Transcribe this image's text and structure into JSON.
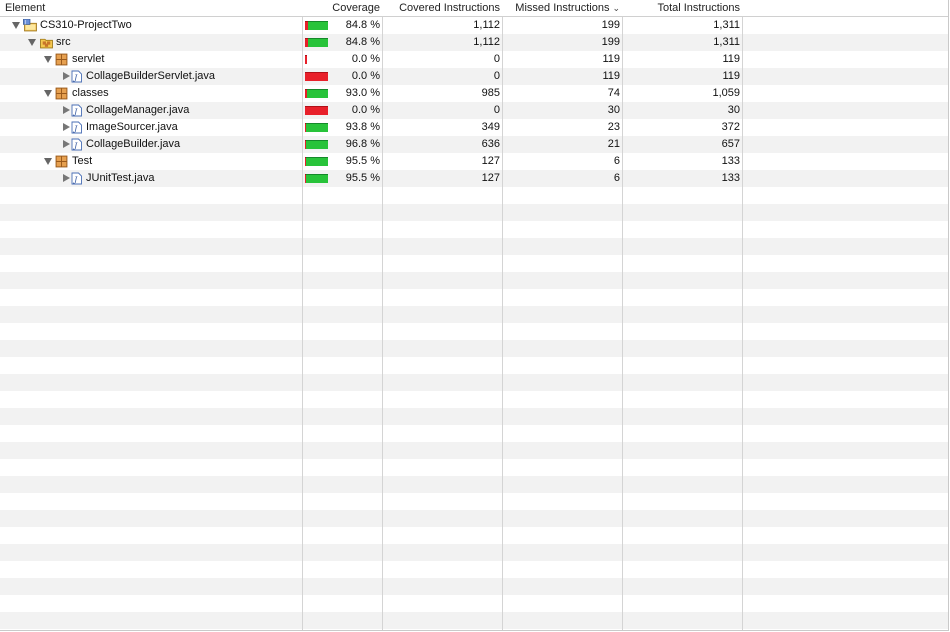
{
  "columns": {
    "element": "Element",
    "coverage": "Coverage",
    "covered": "Covered Instructions",
    "missed": "Missed Instructions",
    "total": "Total Instructions"
  },
  "sort": {
    "column": "missed",
    "direction": "descending",
    "icon": "chevron-down-icon"
  },
  "colors": {
    "covered": "#28c33a",
    "missed": "#e8202a",
    "stripe": "#f2f2f2"
  },
  "rows": [
    {
      "name": "CS310-ProjectTwo",
      "type": "project",
      "level": 0,
      "expanded": true,
      "coverage": "84.8 %",
      "ratio": 0.848,
      "covered": "1,112",
      "missed": "199",
      "total": "1,311"
    },
    {
      "name": "src",
      "type": "source-folder",
      "level": 1,
      "expanded": true,
      "coverage": "84.8 %",
      "ratio": 0.848,
      "covered": "1,112",
      "missed": "199",
      "total": "1,311"
    },
    {
      "name": "servlet",
      "type": "package",
      "level": 2,
      "expanded": true,
      "coverage": "0.0 %",
      "ratio": 0.0,
      "covered": "0",
      "missed": "119",
      "total": "119"
    },
    {
      "name": "CollageBuilderServlet.java",
      "type": "java-file",
      "level": 3,
      "expanded": false,
      "coverage": "0.0 %",
      "ratio": 0.0,
      "covered": "0",
      "missed": "119",
      "total": "119"
    },
    {
      "name": "classes",
      "type": "package",
      "level": 2,
      "expanded": true,
      "coverage": "93.0 %",
      "ratio": 0.93,
      "covered": "985",
      "missed": "74",
      "total": "1,059"
    },
    {
      "name": "CollageManager.java",
      "type": "java-file",
      "level": 3,
      "expanded": false,
      "coverage": "0.0 %",
      "ratio": 0.0,
      "covered": "0",
      "missed": "30",
      "total": "30"
    },
    {
      "name": "ImageSourcer.java",
      "type": "java-file",
      "level": 3,
      "expanded": false,
      "coverage": "93.8 %",
      "ratio": 0.938,
      "covered": "349",
      "missed": "23",
      "total": "372"
    },
    {
      "name": "CollageBuilder.java",
      "type": "java-file",
      "level": 3,
      "expanded": false,
      "coverage": "96.8 %",
      "ratio": 0.968,
      "covered": "636",
      "missed": "21",
      "total": "657"
    },
    {
      "name": "Test",
      "type": "package",
      "level": 2,
      "expanded": true,
      "coverage": "95.5 %",
      "ratio": 0.955,
      "covered": "127",
      "missed": "6",
      "total": "133"
    },
    {
      "name": "JUnitTest.java",
      "type": "java-file",
      "level": 3,
      "expanded": false,
      "coverage": "95.5 %",
      "ratio": 0.955,
      "covered": "127",
      "missed": "6",
      "total": "133"
    }
  ]
}
